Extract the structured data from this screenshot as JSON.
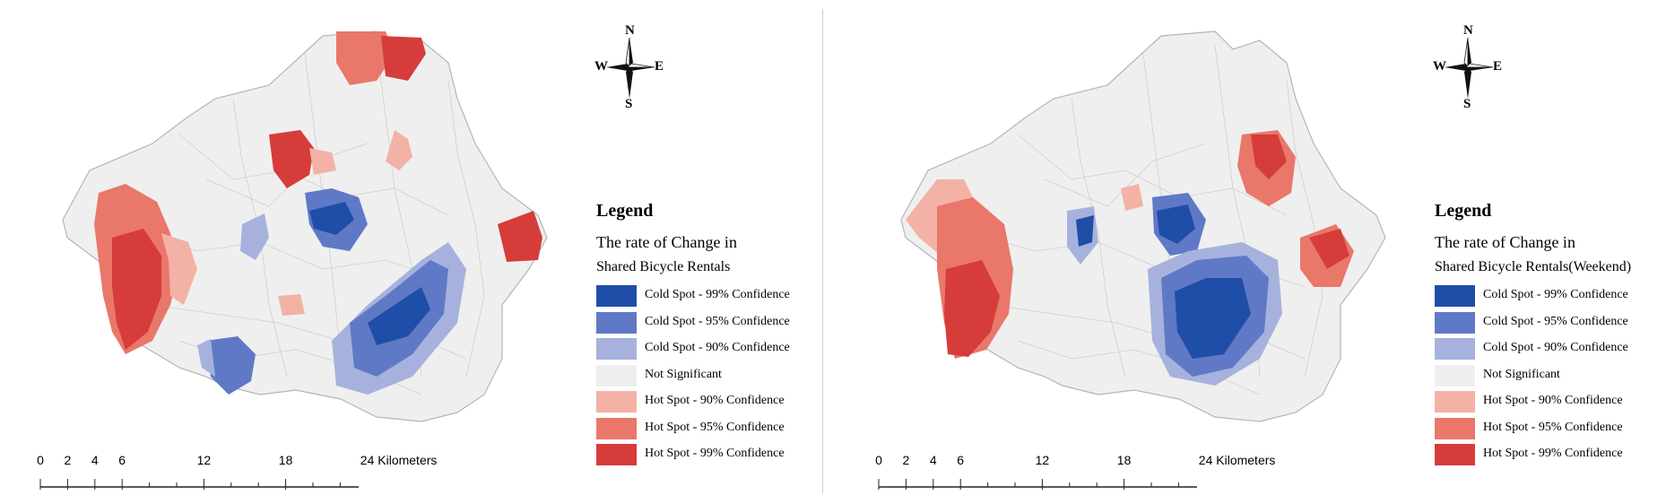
{
  "colors": {
    "cold99": "#1f4ea8",
    "cold95": "#6079c6",
    "cold90": "#a6b2dd",
    "not_significant": "#efefef",
    "hot90": "#f3b2a5",
    "hot95": "#e9776a",
    "hot99": "#d63c3a",
    "boundary": "#c8c8c8"
  },
  "compass": {
    "n": "N",
    "s": "S",
    "e": "E",
    "w": "W"
  },
  "scale_bar": {
    "ticks": [
      "0",
      "2",
      "4",
      "6",
      "12",
      "18",
      "24 Kilometers"
    ],
    "tick_km": [
      0,
      2,
      4,
      6,
      12,
      18,
      24
    ]
  },
  "panels": [
    {
      "legend_title": "Legend",
      "subtitle_line1": "The rate of Change in",
      "subtitle_line2": "Shared Bicycle Rentals",
      "items": [
        {
          "label": "Cold Spot - 99% Confidence",
          "color": "#1f4ea8"
        },
        {
          "label": "Cold Spot - 95% Confidence",
          "color": "#6079c6"
        },
        {
          "label": "Cold Spot - 90% Confidence",
          "color": "#a6b2dd"
        },
        {
          "label": "Not Significant",
          "color": "#efefef"
        },
        {
          "label": "Hot Spot - 90% Confidence",
          "color": "#f3b2a5"
        },
        {
          "label": "Hot Spot - 95% Confidence",
          "color": "#e9776a"
        },
        {
          "label": "Hot Spot - 99% Confidence",
          "color": "#d63c3a"
        }
      ]
    },
    {
      "legend_title": "Legend",
      "subtitle_line1": "The rate of Change in",
      "subtitle_line2": "Shared Bicycle Rentals(Weekend)",
      "items": [
        {
          "label": "Cold Spot - 99% Confidence",
          "color": "#1f4ea8"
        },
        {
          "label": "Cold Spot - 95% Confidence",
          "color": "#6079c6"
        },
        {
          "label": "Cold Spot - 90% Confidence",
          "color": "#a6b2dd"
        },
        {
          "label": "Not Significant",
          "color": "#efefef"
        },
        {
          "label": "Hot Spot - 90% Confidence",
          "color": "#f3b2a5"
        },
        {
          "label": "Hot Spot - 95% Confidence",
          "color": "#e9776a"
        },
        {
          "label": "Hot Spot - 99% Confidence",
          "color": "#d63c3a"
        }
      ]
    }
  ]
}
